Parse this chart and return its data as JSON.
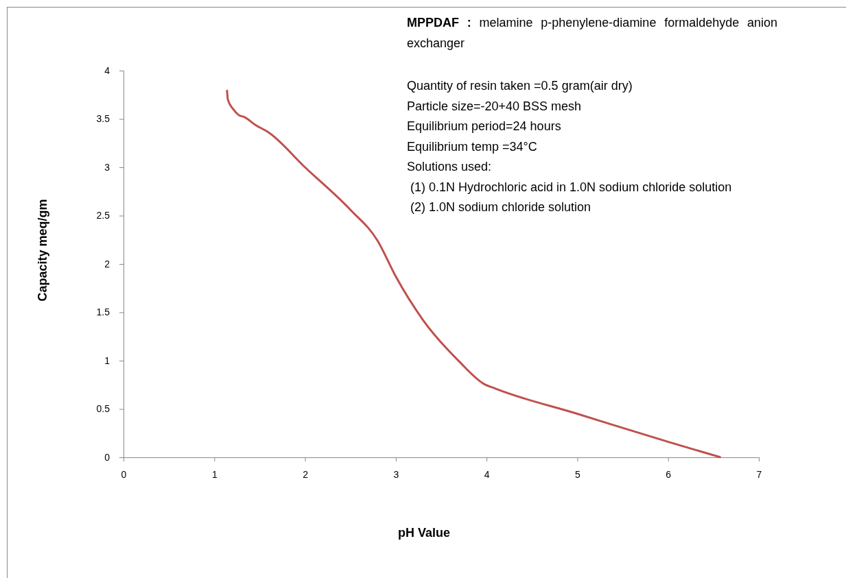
{
  "chart_data": {
    "type": "line",
    "xlabel": "pH Value",
    "ylabel": "Capacity meq/gm",
    "x": [
      1.14,
      1.15,
      1.21,
      1.27,
      1.33,
      1.45,
      1.6,
      2.0,
      2.5,
      2.8,
      3.0,
      3.3,
      3.7,
      3.97,
      4.1,
      5.0,
      6.0,
      6.58
    ],
    "series": [
      {
        "color": "#c0504d",
        "values": [
          3.8,
          3.7,
          3.6,
          3.54,
          3.52,
          3.44,
          3.36,
          3.0,
          2.56,
          2.24,
          1.87,
          1.42,
          0.99,
          0.76,
          0.71,
          0.45,
          0.16,
          0
        ]
      }
    ],
    "xlim": [
      0,
      7
    ],
    "xticks": [
      0,
      1,
      2,
      3,
      4,
      5,
      6,
      7
    ],
    "ylim": [
      0,
      4
    ],
    "yticks": [
      0,
      {
        "value": 0.5,
        "label": "0.5"
      },
      1,
      {
        "value": 1.5,
        "label": "1.5"
      },
      2,
      {
        "value": 2.5,
        "label": "2.5"
      },
      3,
      {
        "value": 3.5,
        "label": "3.5"
      },
      4
    ],
    "grid": false,
    "marker": "none",
    "line_style": "solid",
    "annotations": [
      "MPPDAF : melamine p-phenylene-diamine formaldehyde anion exchanger",
      "Quantity of resin taken =0.5 gram(air dry)",
      "Particle size=-20+40 BSS mesh",
      "Equilibrium period=24 hours",
      "Equilibrium temp =34°C",
      "Solutions used:",
      " (1) 0.1N Hydrochloric acid in 1.0N sodium chloride solution",
      " (2) 1.0N sodium chloride solution"
    ]
  }
}
